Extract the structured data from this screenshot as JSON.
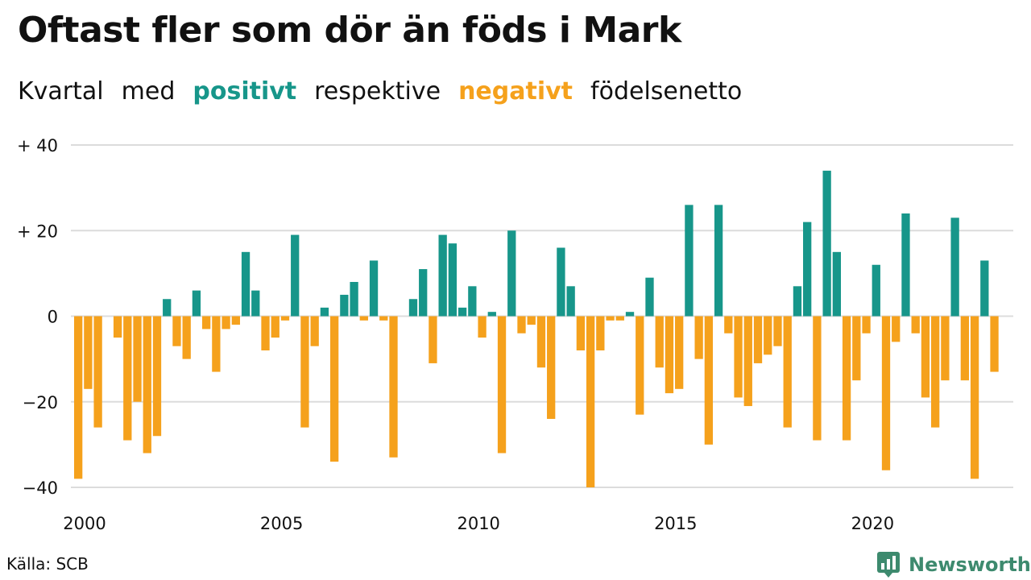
{
  "title": "Oftast fler som dör än föds i Mark",
  "subtitle": {
    "w1": "Kvartal",
    "w2": "med",
    "positive": "positivt",
    "w3": "respektive",
    "negative": "negativt",
    "w4": "födelsenetto"
  },
  "colors": {
    "positive": "#17968a",
    "negative": "#f5a11c",
    "grid": "#dcdcdc"
  },
  "source": "Källa: SCB",
  "brand": {
    "name": "Newsworthy",
    "icon": "newsworthy-logo-icon"
  },
  "chart_data": {
    "type": "bar",
    "title": "Oftast fler som dör än föds i Mark",
    "ylim": [
      -40,
      40
    ],
    "grid": true,
    "y_ticks": [
      {
        "value": 40,
        "label": "+ 40"
      },
      {
        "value": 20,
        "label": "+ 20"
      },
      {
        "value": 0,
        "label": "0"
      },
      {
        "value": -20,
        "label": "−20"
      },
      {
        "value": -40,
        "label": "−40"
      }
    ],
    "x_ticks": [
      {
        "value": 2000,
        "label": "2000"
      },
      {
        "value": 2005,
        "label": "2005"
      },
      {
        "value": 2010,
        "label": "2010"
      },
      {
        "value": 2015,
        "label": "2015"
      },
      {
        "value": 2020,
        "label": "2020"
      }
    ],
    "x_start": "2000 Q1",
    "values": [
      -38,
      -17,
      -26,
      0,
      -5,
      -29,
      -20,
      -32,
      -28,
      4,
      -7,
      -10,
      6,
      -3,
      -13,
      -3,
      -2,
      15,
      6,
      -8,
      -5,
      -1,
      19,
      -26,
      -7,
      2,
      -34,
      5,
      8,
      -1,
      13,
      -1,
      -33,
      0,
      4,
      11,
      -11,
      19,
      17,
      2,
      7,
      -5,
      1,
      -32,
      20,
      -4,
      -2,
      -12,
      -24,
      16,
      7,
      -8,
      -40,
      -8,
      -1,
      -1,
      1,
      -23,
      9,
      -12,
      -18,
      -17,
      26,
      -10,
      -30,
      26,
      -4,
      -19,
      -21,
      -11,
      -9,
      -7,
      -26,
      7,
      22,
      -29,
      34,
      15,
      -29,
      -15,
      -4,
      12,
      -36,
      -6,
      24,
      -4,
      -19,
      -26,
      -15,
      23,
      -15,
      -38,
      13,
      -13
    ]
  }
}
